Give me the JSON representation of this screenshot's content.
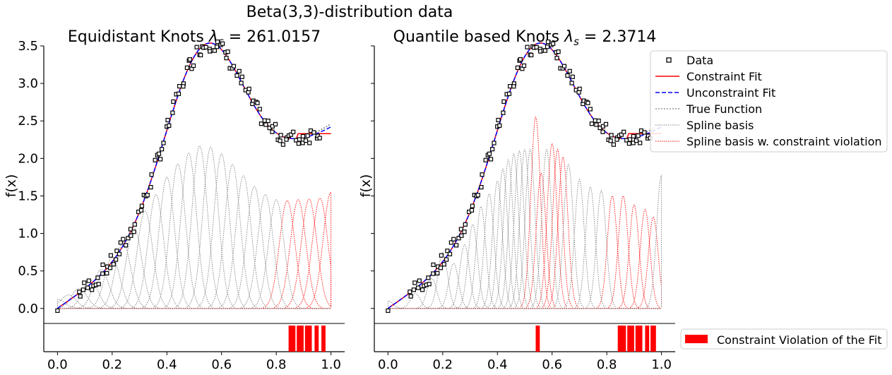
{
  "figure": {
    "suptitle": "Beta(3,3)-distribution data",
    "ylabel": "f(x)",
    "xticks": [
      0.0,
      0.2,
      0.4,
      0.6,
      0.8,
      1.0
    ],
    "yticks": [
      0.0,
      0.5,
      1.0,
      1.5,
      2.0,
      2.5,
      3.0,
      3.5
    ],
    "colors": {
      "data": "#000000",
      "constraint_fit": "#ff0000",
      "unconstraint_fit": "#0000ff",
      "true_function": "#808080",
      "spline_basis": "#808080",
      "spline_violation": "#ff0000",
      "violation_bar": "#ff0000"
    }
  },
  "legend": {
    "data": "Data",
    "constraint_fit": "Constraint Fit",
    "unconstraint_fit": "Unconstraint Fit",
    "true_function": "True Function",
    "spline_basis": "Spline basis",
    "spline_violation": "Spline basis w. constraint violation",
    "violation": "Constraint Violation of the Fit"
  },
  "chart_data": [
    {
      "type": "line",
      "title_prefix": "Equidistant Knots ",
      "title_lambda": "λ",
      "title_sub": "s",
      "title_suffix": " = 261.0157",
      "xlim": [
        -0.05,
        1.05
      ],
      "ylim": [
        -0.2,
        3.5
      ],
      "basis": {
        "centers": [
          0.0,
          0.04,
          0.08,
          0.12,
          0.16,
          0.2,
          0.24,
          0.28,
          0.32,
          0.36,
          0.4,
          0.44,
          0.48,
          0.52,
          0.56,
          0.6,
          0.64,
          0.68,
          0.72,
          0.76,
          0.8,
          0.84,
          0.88,
          0.92,
          0.96,
          1.0
        ],
        "heights": [
          0.12,
          0.18,
          0.27,
          0.38,
          0.52,
          0.68,
          0.88,
          1.08,
          1.3,
          1.52,
          1.75,
          1.93,
          2.07,
          2.17,
          2.15,
          2.06,
          1.92,
          1.77,
          1.63,
          1.52,
          1.45,
          1.44,
          1.45,
          1.46,
          1.47,
          1.55
        ],
        "violation": [
          false,
          false,
          false,
          false,
          false,
          false,
          false,
          false,
          false,
          false,
          false,
          false,
          false,
          false,
          false,
          false,
          false,
          false,
          false,
          false,
          false,
          true,
          true,
          true,
          true,
          true
        ],
        "width": 0.04
      },
      "fit_end": 2.33,
      "unconstraint_end": 2.42,
      "violation_intervals": [
        [
          0.845,
          0.87
        ],
        [
          0.875,
          0.9
        ],
        [
          0.905,
          0.93
        ],
        [
          0.94,
          0.955
        ],
        [
          0.965,
          0.98
        ]
      ]
    },
    {
      "type": "line",
      "title_prefix": "Quantile based Knots ",
      "title_lambda": "λ",
      "title_sub": "s",
      "title_suffix": " = 2.3714",
      "xlim": [
        -0.05,
        1.05
      ],
      "ylim": [
        -0.2,
        3.5
      ],
      "basis": {
        "centers": [
          0.0,
          0.1,
          0.16,
          0.2,
          0.24,
          0.28,
          0.31,
          0.34,
          0.37,
          0.4,
          0.42,
          0.44,
          0.46,
          0.48,
          0.5,
          0.52,
          0.54,
          0.56,
          0.58,
          0.6,
          0.62,
          0.64,
          0.66,
          0.7,
          0.74,
          0.78,
          0.82,
          0.86,
          0.9,
          0.94,
          0.97,
          1.0
        ],
        "heights": [
          0.1,
          0.2,
          0.4,
          0.75,
          0.6,
          0.85,
          1.12,
          1.36,
          1.53,
          1.7,
          1.86,
          1.98,
          2.06,
          2.1,
          2.12,
          2.12,
          2.55,
          1.8,
          2.12,
          2.2,
          2.12,
          2.02,
          1.92,
          1.72,
          1.62,
          1.57,
          1.5,
          1.5,
          1.38,
          1.32,
          1.22,
          1.78
        ],
        "violation": [
          false,
          false,
          false,
          false,
          false,
          false,
          false,
          false,
          false,
          false,
          false,
          false,
          false,
          false,
          false,
          false,
          true,
          true,
          false,
          true,
          true,
          true,
          false,
          false,
          false,
          false,
          true,
          true,
          true,
          true,
          true,
          false
        ],
        "width": 0.025
      },
      "fit_end": 2.33,
      "unconstraint_end": 2.42,
      "violation_intervals": [
        [
          0.54,
          0.555
        ],
        [
          0.84,
          0.87
        ],
        [
          0.875,
          0.9
        ],
        [
          0.905,
          0.93
        ],
        [
          0.94,
          0.955
        ],
        [
          0.96,
          0.98
        ]
      ]
    }
  ]
}
